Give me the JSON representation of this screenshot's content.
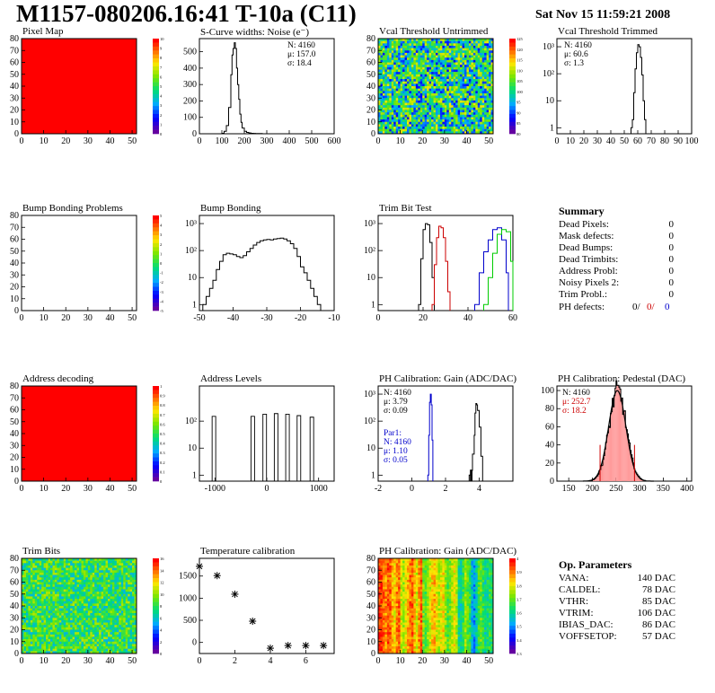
{
  "header": {
    "title": "M1157-080206.16:41 T-10a (C11)",
    "date": "Sat Nov 15 11:59:21 2008"
  },
  "summary": {
    "title": "Summary",
    "rows": [
      {
        "label": "Dead Pixels:",
        "value": "0"
      },
      {
        "label": "Mask defects:",
        "value": "0"
      },
      {
        "label": "Dead Bumps:",
        "value": "0"
      },
      {
        "label": "Dead Trimbits:",
        "value": "0"
      },
      {
        "label": "Address Probl:",
        "value": "0"
      },
      {
        "label": "Noisy Pixels 2:",
        "value": "0"
      },
      {
        "label": "Trim Probl.:",
        "value": "0"
      }
    ],
    "ph_defects": {
      "label": "PH defects:",
      "v1": "0/",
      "v2": "0/",
      "v3": "0",
      "c1": "#000000",
      "c2": "#cc0000",
      "c3": "#0000cc"
    }
  },
  "op_params": {
    "title": "Op. Parameters",
    "rows": [
      {
        "label": "VANA:",
        "value": "140 DAC"
      },
      {
        "label": "CALDEL:",
        "value": "78 DAC"
      },
      {
        "label": "VTHR:",
        "value": "85 DAC"
      },
      {
        "label": "VTRIM:",
        "value": "106 DAC"
      },
      {
        "label": "IBIAS_DAC:",
        "value": "86 DAC"
      },
      {
        "label": "VOFFSETOP:",
        "value": "57 DAC"
      }
    ]
  },
  "chart_data": [
    {
      "id": "pixel_map",
      "type": "heatmap",
      "title": "Pixel Map",
      "xlim": [
        0,
        52
      ],
      "ylim": [
        0,
        80
      ],
      "xticks": [
        "0",
        "10",
        "20",
        "30",
        "40",
        "50"
      ],
      "yticks": [
        "0",
        "10",
        "20",
        "30",
        "40",
        "50",
        "60",
        "70",
        "80"
      ],
      "fill": "uniform",
      "fill_color": "#ff0000",
      "palette": "rainbow",
      "z_ticks": [
        "10",
        "9",
        "8",
        "7",
        "6",
        "5",
        "4",
        "3",
        "2",
        "1",
        "0"
      ]
    },
    {
      "id": "scurve",
      "type": "line",
      "title": "S-Curve widths: Noise (e⁻)",
      "xlim": [
        0,
        600
      ],
      "ylim": [
        0,
        580
      ],
      "xticks": [
        "0",
        "100",
        "200",
        "300",
        "400",
        "500",
        "600"
      ],
      "yticks": [
        "0",
        "100",
        "200",
        "300",
        "400",
        "500"
      ],
      "stats": [
        "N: 4160",
        "μ: 157.0",
        "σ: 18.4"
      ],
      "x": [
        90,
        100,
        110,
        120,
        130,
        140,
        145,
        150,
        155,
        160,
        165,
        170,
        175,
        180,
        185,
        190,
        200,
        210,
        220,
        230,
        240,
        250,
        260,
        280
      ],
      "y": [
        0,
        3,
        15,
        50,
        160,
        360,
        480,
        520,
        555,
        520,
        400,
        300,
        210,
        120,
        70,
        35,
        15,
        8,
        5,
        3,
        2,
        1,
        1,
        0
      ]
    },
    {
      "id": "vcal_untrimmed",
      "type": "heatmap",
      "title": "Vcal Threshold Untrimmed",
      "xlim": [
        0,
        52
      ],
      "ylim": [
        0,
        80
      ],
      "xticks": [
        "0",
        "10",
        "20",
        "30",
        "40",
        "50"
      ],
      "yticks": [
        "0",
        "10",
        "20",
        "30",
        "40",
        "50",
        "60",
        "70",
        "80"
      ],
      "fill": "noise",
      "palette": "rainbow",
      "z_ticks": [
        "125",
        "120",
        "115",
        "110",
        "105",
        "100",
        "95",
        "90",
        "85",
        "80"
      ]
    },
    {
      "id": "vcal_trimmed",
      "type": "line",
      "title": "Vcal Threshold Trimmed",
      "xlim": [
        0,
        100
      ],
      "log_y": true,
      "ylim_log": [
        0.6,
        2000
      ],
      "xticks": [
        "0",
        "10",
        "20",
        "30",
        "40",
        "50",
        "60",
        "70",
        "80",
        "90",
        "100"
      ],
      "yticks_log": [
        "1",
        "10",
        "10²",
        "10³"
      ],
      "stats": [
        "N: 4160",
        "μ: 60.6",
        "σ: 1.3"
      ],
      "x": [
        55,
        56,
        57,
        58,
        59,
        60,
        61,
        62,
        63,
        64,
        65,
        66
      ],
      "y": [
        1,
        2,
        20,
        150,
        600,
        1200,
        1000,
        400,
        90,
        10,
        2,
        1
      ]
    },
    {
      "id": "bump_problems",
      "type": "heatmap",
      "title": "Bump Bonding Problems",
      "xlim": [
        0,
        52
      ],
      "ylim": [
        0,
        80
      ],
      "xticks": [
        "0",
        "10",
        "20",
        "30",
        "40",
        "50"
      ],
      "yticks": [
        "0",
        "10",
        "20",
        "30",
        "40",
        "50",
        "60",
        "70",
        "80"
      ],
      "fill": "empty",
      "palette": "rainbow",
      "z_ticks": [
        "5",
        "4",
        "3",
        "2",
        "1",
        "0",
        "-1",
        "-2",
        "-3",
        "-4",
        "-5"
      ]
    },
    {
      "id": "bump_bonding",
      "type": "line",
      "title": "Bump Bonding",
      "xlim": [
        -50,
        -10
      ],
      "log_y": true,
      "ylim_log": [
        0.6,
        2000
      ],
      "xticks": [
        "-50",
        "-40",
        "-30",
        "-20",
        "-10"
      ],
      "yticks_log": [
        "1",
        "10",
        "10²",
        "10³"
      ],
      "x": [
        -49,
        -48,
        -47,
        -46,
        -45,
        -44,
        -43,
        -42,
        -41,
        -40,
        -39,
        -38,
        -37,
        -36,
        -35,
        -34,
        -33,
        -32,
        -31,
        -30,
        -29,
        -28,
        -27,
        -26,
        -25,
        -24,
        -23,
        -22,
        -21,
        -20,
        -19,
        -18,
        -17,
        -16,
        -15,
        -14
      ],
      "y": [
        1,
        2,
        4,
        8,
        20,
        40,
        70,
        80,
        75,
        70,
        60,
        55,
        65,
        90,
        120,
        160,
        200,
        230,
        250,
        260,
        250,
        270,
        280,
        290,
        270,
        230,
        180,
        120,
        60,
        25,
        15,
        8,
        4,
        2,
        1,
        0.7
      ]
    },
    {
      "id": "trim_bit_test",
      "type": "line",
      "title": "Trim Bit Test",
      "xlim": [
        0,
        60
      ],
      "log_y": true,
      "ylim_log": [
        0.6,
        2000
      ],
      "xticks": [
        "0",
        "20",
        "40",
        "60"
      ],
      "yticks_log": [
        "1",
        "10",
        "10²",
        "10³"
      ],
      "series": [
        {
          "color": "#000000",
          "x": [
            18,
            19,
            20,
            21,
            22,
            23,
            24,
            25
          ],
          "y": [
            1,
            50,
            600,
            1000,
            900,
            200,
            10,
            1
          ]
        },
        {
          "color": "#cc0000",
          "x": [
            24,
            25,
            26,
            27,
            28,
            29,
            30,
            31,
            32
          ],
          "y": [
            1,
            30,
            300,
            800,
            700,
            300,
            40,
            3,
            1
          ]
        },
        {
          "color": "#0000cc",
          "x": [
            43,
            45,
            47,
            49,
            51,
            53,
            55,
            57,
            58
          ],
          "y": [
            1,
            15,
            90,
            250,
            600,
            700,
            250,
            15,
            1
          ]
        },
        {
          "color": "#00cc00",
          "x": [
            47,
            49,
            51,
            53,
            55,
            57,
            59,
            60
          ],
          "y": [
            1,
            10,
            80,
            400,
            600,
            500,
            40,
            1
          ]
        }
      ]
    },
    {
      "id": "address_decoding",
      "type": "heatmap",
      "title": "Address decoding",
      "xlim": [
        0,
        52
      ],
      "ylim": [
        0,
        80
      ],
      "xticks": [
        "0",
        "10",
        "20",
        "30",
        "40",
        "50"
      ],
      "yticks": [
        "0",
        "10",
        "20",
        "30",
        "40",
        "50",
        "60",
        "70",
        "80"
      ],
      "fill": "uniform",
      "fill_color": "#ff0000",
      "palette": "rainbow",
      "z_ticks": [
        "1",
        "0.9",
        "0.8",
        "0.7",
        "0.6",
        "0.5",
        "0.4",
        "0.3",
        "0.2",
        "0.1",
        "0"
      ]
    },
    {
      "id": "address_levels",
      "type": "bar",
      "title": "Address Levels",
      "xlim": [
        -1300,
        1300
      ],
      "log_y": true,
      "ylim_log": [
        0.6,
        2000
      ],
      "xticks": [
        "-1000",
        "0",
        "1000"
      ],
      "yticks_log": [
        "1",
        "10",
        "10²"
      ],
      "spikes": [
        {
          "x": -1020,
          "y": 150
        },
        {
          "x": -270,
          "y": 150
        },
        {
          "x": -40,
          "y": 180
        },
        {
          "x": 180,
          "y": 190
        },
        {
          "x": 400,
          "y": 180
        },
        {
          "x": 620,
          "y": 160
        },
        {
          "x": 870,
          "y": 140
        }
      ]
    },
    {
      "id": "ph_gain",
      "type": "line",
      "title": "PH Calibration: Gain (ADC/DAC)",
      "xlim": [
        -2,
        6
      ],
      "log_y": true,
      "ylim_log": [
        0.6,
        2000
      ],
      "xticks": [
        "-2",
        "0",
        "2",
        "4"
      ],
      "yticks_log": [
        "1",
        "10",
        "10²",
        "10³"
      ],
      "stats": [
        "N: 4160",
        "μ: 3.79",
        "σ: 0.09"
      ],
      "stats2_color": "#0000cc",
      "stats2": [
        "Par1:",
        "N: 4160",
        "μ: 1.10",
        "σ: 0.05"
      ],
      "series": [
        {
          "color": "#000000",
          "x": [
            3.4,
            3.5,
            3.6,
            3.7,
            3.75,
            3.8,
            3.85,
            3.9,
            4.0,
            4.1,
            4.2
          ],
          "y": [
            1,
            1.5,
            6,
            30,
            200,
            450,
            400,
            250,
            60,
            5,
            1
          ]
        },
        {
          "color": "#0000cc",
          "x": [
            0.95,
            1.0,
            1.05,
            1.1,
            1.15,
            1.2,
            1.25
          ],
          "y": [
            1,
            30,
            500,
            1000,
            400,
            20,
            1
          ]
        }
      ]
    },
    {
      "id": "ph_pedestal",
      "type": "bar",
      "title": "PH Calibration: Pedestal (DAC)",
      "xlim": [
        125,
        410
      ],
      "ylim": [
        0,
        105
      ],
      "xticks": [
        "150",
        "200",
        "250",
        "300",
        "350",
        "400"
      ],
      "yticks": [
        "0",
        "20",
        "40",
        "60",
        "80",
        "100"
      ],
      "stats": [
        "N: 4160",
        "μ: 252.7",
        "σ: 18.2"
      ],
      "stats_colors": [
        "#000000",
        "#cc0000",
        "#cc0000"
      ],
      "mean": 252.7,
      "sigma": 18.2,
      "peak": 100
    },
    {
      "id": "trim_bits",
      "type": "heatmap",
      "title": "Trim Bits",
      "xlim": [
        0,
        52
      ],
      "ylim": [
        0,
        80
      ],
      "xticks": [
        "0",
        "10",
        "20",
        "30",
        "40",
        "50"
      ],
      "yticks": [
        "0",
        "10",
        "20",
        "30",
        "40",
        "50",
        "60",
        "70",
        "80"
      ],
      "fill": "noise_mid",
      "palette": "rainbow",
      "z_ticks": [
        "16",
        "14",
        "12",
        "10",
        "8",
        "6",
        "4",
        "2",
        "0"
      ]
    },
    {
      "id": "temp_calibration",
      "type": "scatter",
      "title": "Temperature calibration",
      "xlim": [
        0,
        7.6
      ],
      "ylim": [
        -250,
        1900
      ],
      "xticks": [
        "0",
        "2",
        "4",
        "6"
      ],
      "yticks": [
        "0",
        "500",
        "1000",
        "1500"
      ],
      "x": [
        0,
        1,
        2,
        3,
        4,
        5,
        6,
        7
      ],
      "y": [
        1720,
        1510,
        1090,
        480,
        -130,
        -70,
        -70,
        -70
      ]
    },
    {
      "id": "ph_gain_map",
      "type": "heatmap",
      "title": "PH Calibration: Gain (ADC/DAC)",
      "xlim": [
        0,
        52
      ],
      "ylim": [
        0,
        80
      ],
      "xticks": [
        "0",
        "10",
        "20",
        "30",
        "40",
        "50"
      ],
      "yticks": [
        "0",
        "10",
        "20",
        "30",
        "40",
        "50",
        "60",
        "70",
        "80"
      ],
      "fill": "columns",
      "palette": "rainbow",
      "z_ticks": [
        "4",
        "3.9",
        "3.8",
        "3.7",
        "3.6",
        "3.5",
        "3.4",
        "3.3"
      ]
    }
  ]
}
